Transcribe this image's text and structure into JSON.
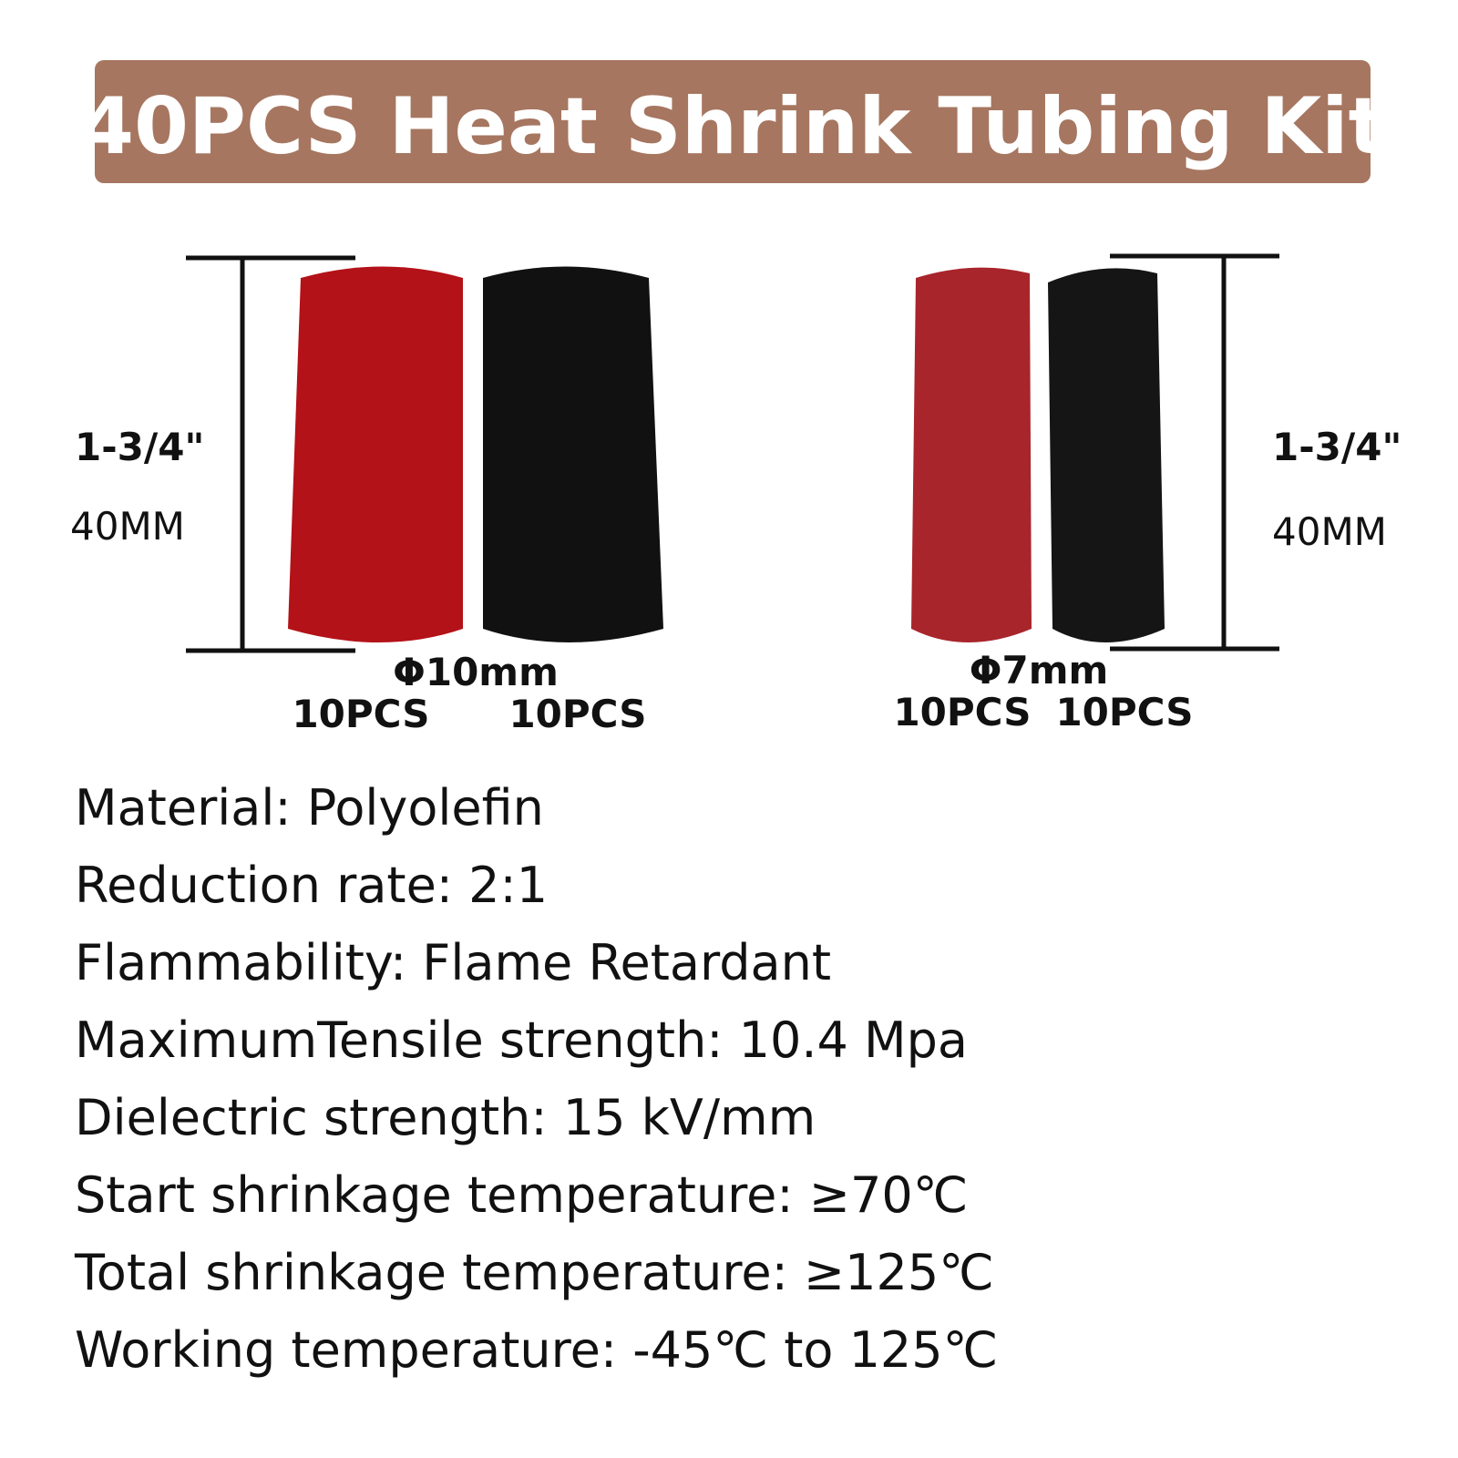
{
  "header": {
    "title": "40PCS Heat Shrink Tubing Kit"
  },
  "left_group": {
    "length_inch": "1-3/4\"",
    "length_mm": "40MM",
    "diameter": "Φ10mm",
    "counts": [
      "10PCS",
      "10PCS"
    ]
  },
  "right_group": {
    "length_inch": "1-3/4\"",
    "length_mm": "40MM",
    "diameter": "Φ7mm",
    "counts": [
      "10PCS",
      "10PCS"
    ]
  },
  "specs": [
    "Material: Polyolefin",
    "Reduction rate: 2:1",
    "Flammability: Flame Retardant",
    "MaximumTensile strength: 10.4 Mpa",
    "Dielectric strength: 15 kV/mm",
    "Start shrinkage temperature: ≥70℃",
    "Total shrinkage temperature: ≥125℃",
    "Working temperature: -45℃ to 125℃"
  ]
}
